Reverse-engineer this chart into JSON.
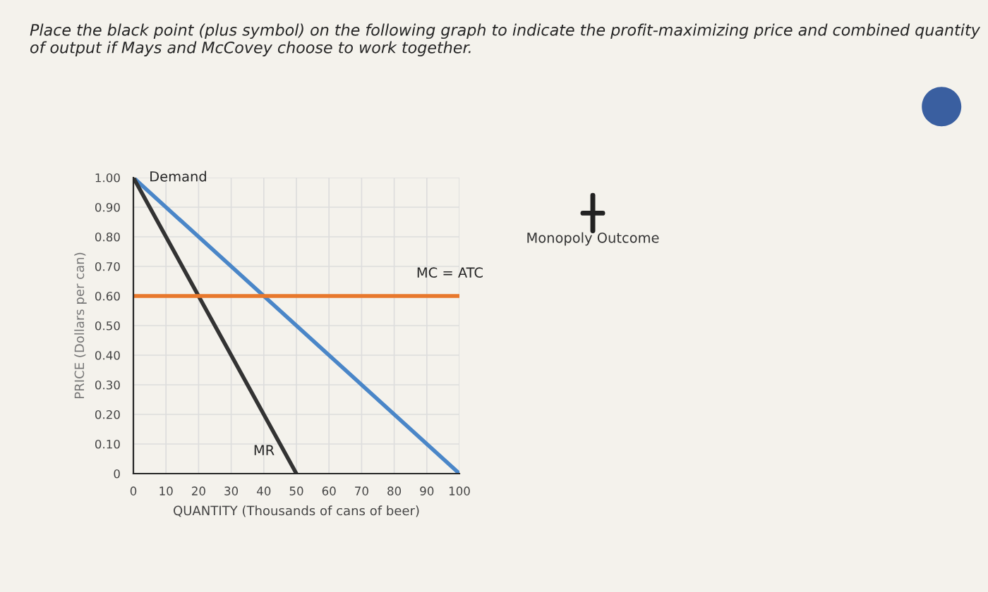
{
  "chart_data": {
    "type": "line",
    "title": "Place the black point (plus symbol) on the following graph to indicate the profit-maximizing price and combined quantity of output if Mays and McCovey choose to work together.",
    "xlabel": "QUANTITY (Thousands of cans of beer)",
    "ylabel": "PRICE (Dollars per can)",
    "series": [
      {
        "name": "Demand",
        "color": "#4a86c8",
        "x": [
          0,
          100
        ],
        "values": [
          1.0,
          0
        ]
      },
      {
        "name": "MR",
        "color": "#333333",
        "x": [
          0,
          50
        ],
        "values": [
          1.0,
          0
        ]
      },
      {
        "name": "MC = ATC",
        "color": "#e8782c",
        "x": [
          0,
          100
        ],
        "values": [
          0.6,
          0.6
        ]
      }
    ],
    "xlim": [
      0,
      100
    ],
    "ylim": [
      0,
      1.0
    ],
    "xticks": [
      0,
      10,
      20,
      30,
      40,
      50,
      60,
      70,
      80,
      90,
      100
    ],
    "yticks": [
      0,
      {
        "value": 0.1,
        "label": "0.10"
      },
      {
        "value": 0.2,
        "label": "0.20"
      },
      {
        "value": 0.3,
        "label": "0.30"
      },
      {
        "value": 0.4,
        "label": "0.40"
      },
      {
        "value": 0.5,
        "label": "0.50"
      },
      {
        "value": 0.6,
        "label": "0.60"
      },
      {
        "value": 0.7,
        "label": "0.70"
      },
      {
        "value": 0.8,
        "label": "0.80"
      },
      {
        "value": 0.9,
        "label": "0.90"
      },
      {
        "value": 1.0,
        "label": "1.00"
      }
    ],
    "grid": true,
    "legend": false,
    "marker": "none",
    "line_style": "solid",
    "annotations": [
      "Monopoly Outcome"
    ]
  }
}
